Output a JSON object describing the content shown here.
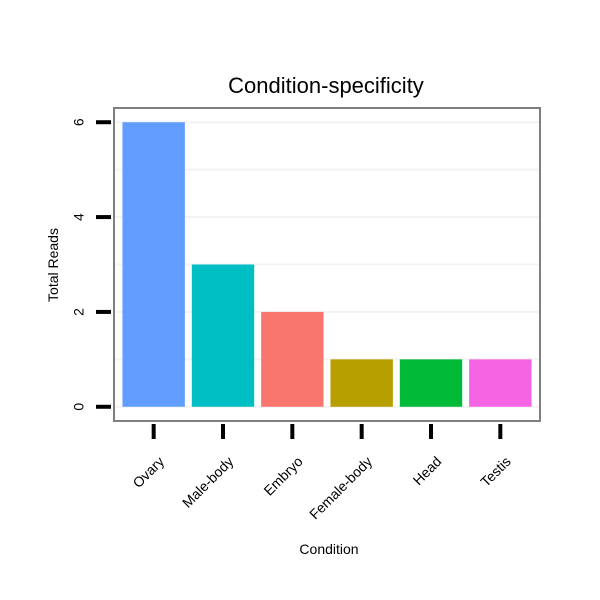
{
  "chart_data": {
    "type": "bar",
    "title": "Condition-specificity",
    "xlabel": "Condition",
    "ylabel": "Total Reads",
    "categories": [
      "Ovary",
      "Male-body",
      "Embryo",
      "Female-body",
      "Head",
      "Testis"
    ],
    "values": [
      6,
      3,
      2,
      1,
      1,
      1
    ],
    "colors": [
      "#619CFF",
      "#00BFC4",
      "#F8766D",
      "#B79F00",
      "#00BA38",
      "#F564E3"
    ],
    "yticks": [
      0,
      2,
      4,
      6
    ],
    "ylim": [
      -0.3,
      6.3
    ],
    "grid": true,
    "legend": "none"
  }
}
